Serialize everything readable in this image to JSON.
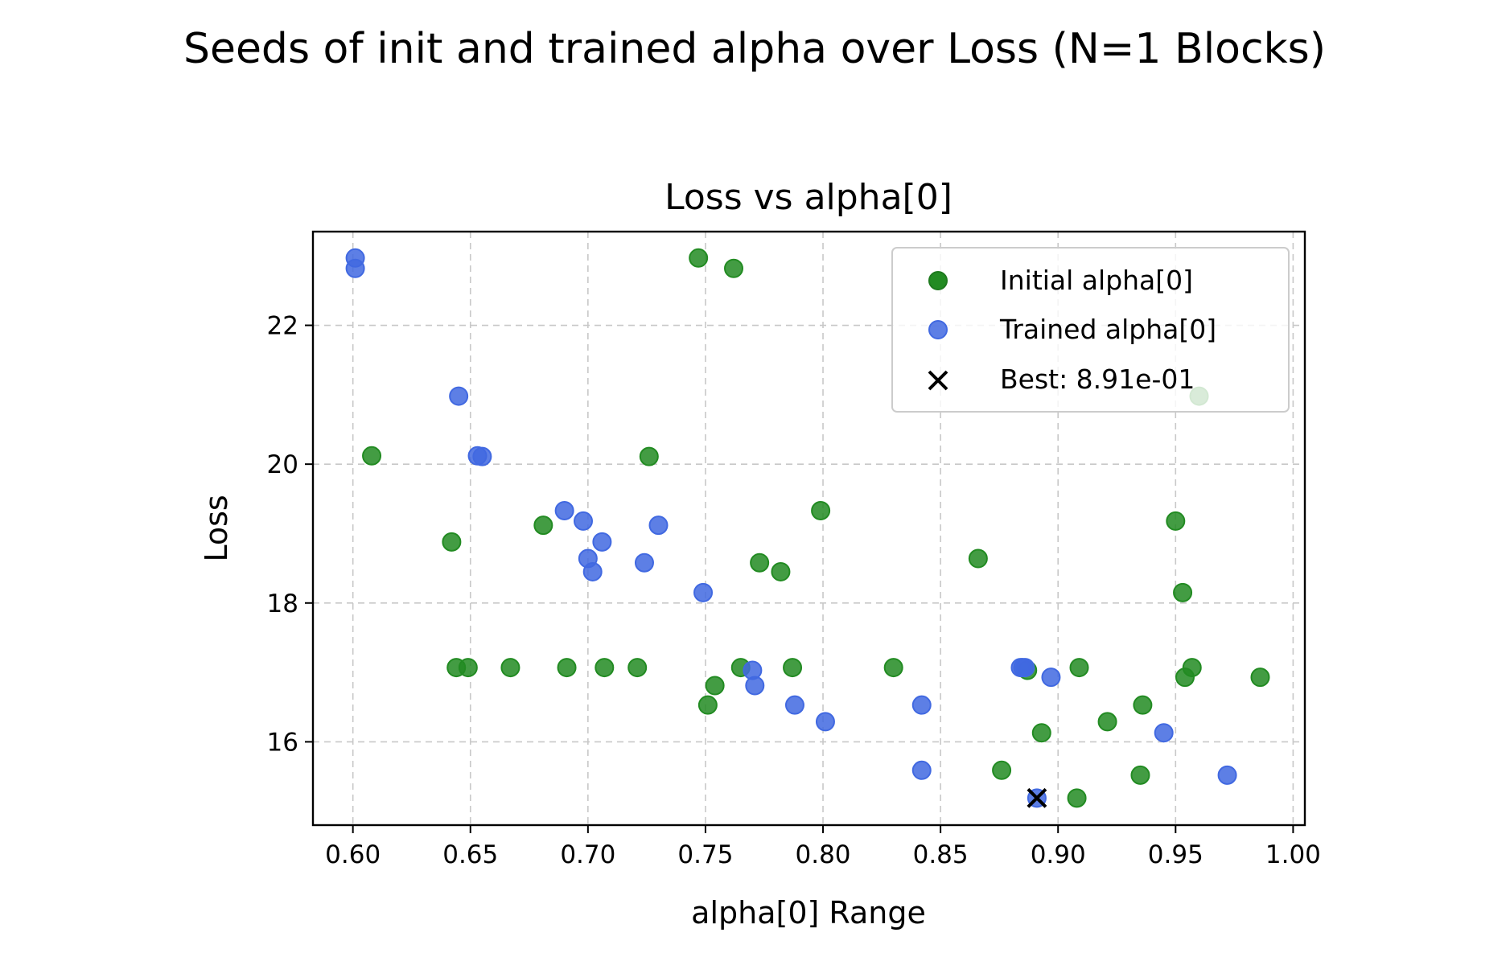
{
  "figure": {
    "suptitle": "Seeds of init and trained alpha over Loss (N=1 Blocks)"
  },
  "chart_data": {
    "type": "scatter",
    "title": "Loss vs alpha[0]",
    "xlabel": "alpha[0] Range",
    "ylabel": "Loss",
    "xlim": [
      0.583,
      1.005
    ],
    "ylim": [
      14.8,
      23.35
    ],
    "xticks": [
      "0.60",
      "0.65",
      "0.70",
      "0.75",
      "0.80",
      "0.85",
      "0.90",
      "0.95",
      "1.00"
    ],
    "yticks": [
      "16",
      "18",
      "20",
      "22"
    ],
    "grid": true,
    "legend_position": "upper right",
    "series": [
      {
        "name": "Initial alpha[0]",
        "color": "#228B22",
        "marker": "circle",
        "points": [
          [
            0.608,
            20.12
          ],
          [
            0.642,
            18.88
          ],
          [
            0.644,
            17.07
          ],
          [
            0.649,
            17.07
          ],
          [
            0.667,
            17.07
          ],
          [
            0.681,
            19.12
          ],
          [
            0.691,
            17.07
          ],
          [
            0.707,
            17.07
          ],
          [
            0.721,
            17.07
          ],
          [
            0.726,
            20.11
          ],
          [
            0.747,
            22.97
          ],
          [
            0.751,
            16.53
          ],
          [
            0.754,
            16.81
          ],
          [
            0.762,
            22.82
          ],
          [
            0.765,
            17.07
          ],
          [
            0.773,
            18.58
          ],
          [
            0.782,
            18.45
          ],
          [
            0.787,
            17.07
          ],
          [
            0.799,
            19.33
          ],
          [
            0.83,
            17.07
          ],
          [
            0.866,
            18.64
          ],
          [
            0.876,
            15.59
          ],
          [
            0.887,
            17.03
          ],
          [
            0.893,
            16.13
          ],
          [
            0.908,
            15.19
          ],
          [
            0.909,
            17.07
          ],
          [
            0.921,
            16.29
          ],
          [
            0.935,
            15.52
          ],
          [
            0.936,
            16.53
          ],
          [
            0.95,
            19.18
          ],
          [
            0.953,
            18.15
          ],
          [
            0.954,
            16.93
          ],
          [
            0.957,
            17.07
          ],
          [
            0.96,
            20.98
          ],
          [
            0.986,
            16.93
          ]
        ]
      },
      {
        "name": "Trained alpha[0]",
        "color": "#4169E1",
        "marker": "circle",
        "points": [
          [
            0.601,
            22.97
          ],
          [
            0.601,
            22.82
          ],
          [
            0.645,
            20.98
          ],
          [
            0.653,
            20.12
          ],
          [
            0.655,
            20.11
          ],
          [
            0.69,
            19.33
          ],
          [
            0.698,
            19.18
          ],
          [
            0.7,
            18.64
          ],
          [
            0.702,
            18.45
          ],
          [
            0.706,
            18.88
          ],
          [
            0.724,
            18.58
          ],
          [
            0.73,
            19.12
          ],
          [
            0.749,
            18.15
          ],
          [
            0.77,
            17.03
          ],
          [
            0.771,
            16.81
          ],
          [
            0.788,
            16.53
          ],
          [
            0.801,
            16.29
          ],
          [
            0.842,
            16.53
          ],
          [
            0.842,
            15.59
          ],
          [
            0.884,
            17.07
          ],
          [
            0.885,
            17.07
          ],
          [
            0.886,
            17.07
          ],
          [
            0.897,
            16.93
          ],
          [
            0.891,
            15.19
          ],
          [
            0.945,
            16.13
          ],
          [
            0.972,
            15.52
          ]
        ]
      },
      {
        "name": "Best: 8.91e-01",
        "color": "#000000",
        "marker": "x",
        "points": [
          [
            0.891,
            15.19
          ]
        ]
      }
    ]
  }
}
